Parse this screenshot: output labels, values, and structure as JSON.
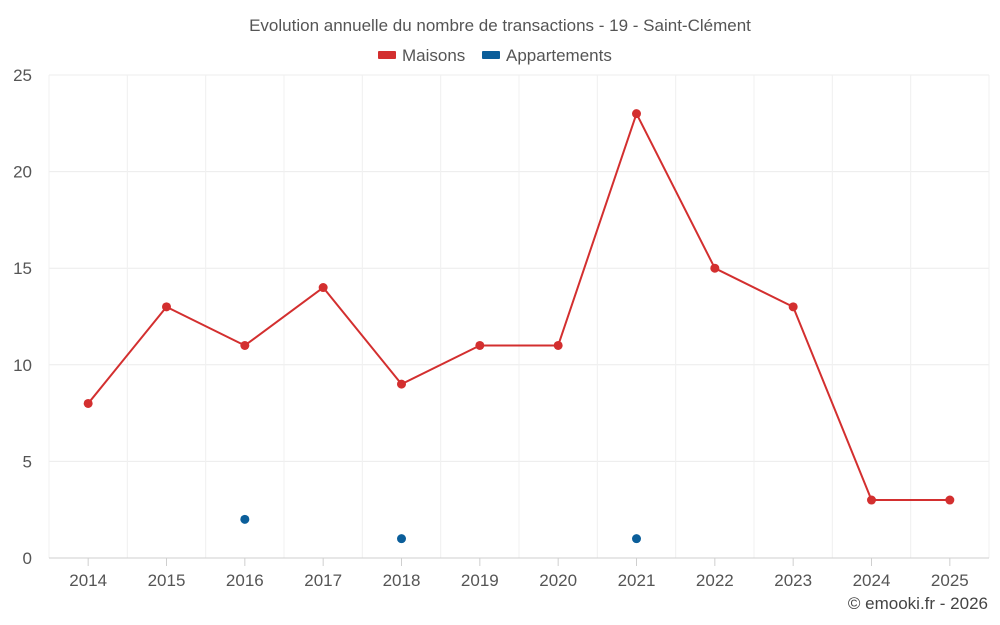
{
  "chart_data": {
    "type": "line",
    "title": "Evolution annuelle du nombre de transactions - 19 - Saint-Clément",
    "xlabel": "",
    "ylabel": "",
    "categories": [
      "2014",
      "2015",
      "2016",
      "2017",
      "2018",
      "2019",
      "2020",
      "2021",
      "2022",
      "2023",
      "2024",
      "2025"
    ],
    "ylim": [
      0,
      25
    ],
    "yticks": [
      "0",
      "5",
      "10",
      "15",
      "20",
      "25"
    ],
    "grid": true,
    "legend_position": "top-center",
    "series": [
      {
        "name": "Maisons",
        "color": "#d32f2f",
        "values": [
          8,
          13,
          11,
          14,
          9,
          11,
          11,
          23,
          15,
          13,
          3,
          3
        ]
      },
      {
        "name": "Appartements",
        "color": "#0b5e9a",
        "values": [
          null,
          null,
          2,
          null,
          1,
          null,
          null,
          1,
          null,
          null,
          null,
          null
        ]
      }
    ]
  },
  "credit": "© emooki.fr - 2026"
}
